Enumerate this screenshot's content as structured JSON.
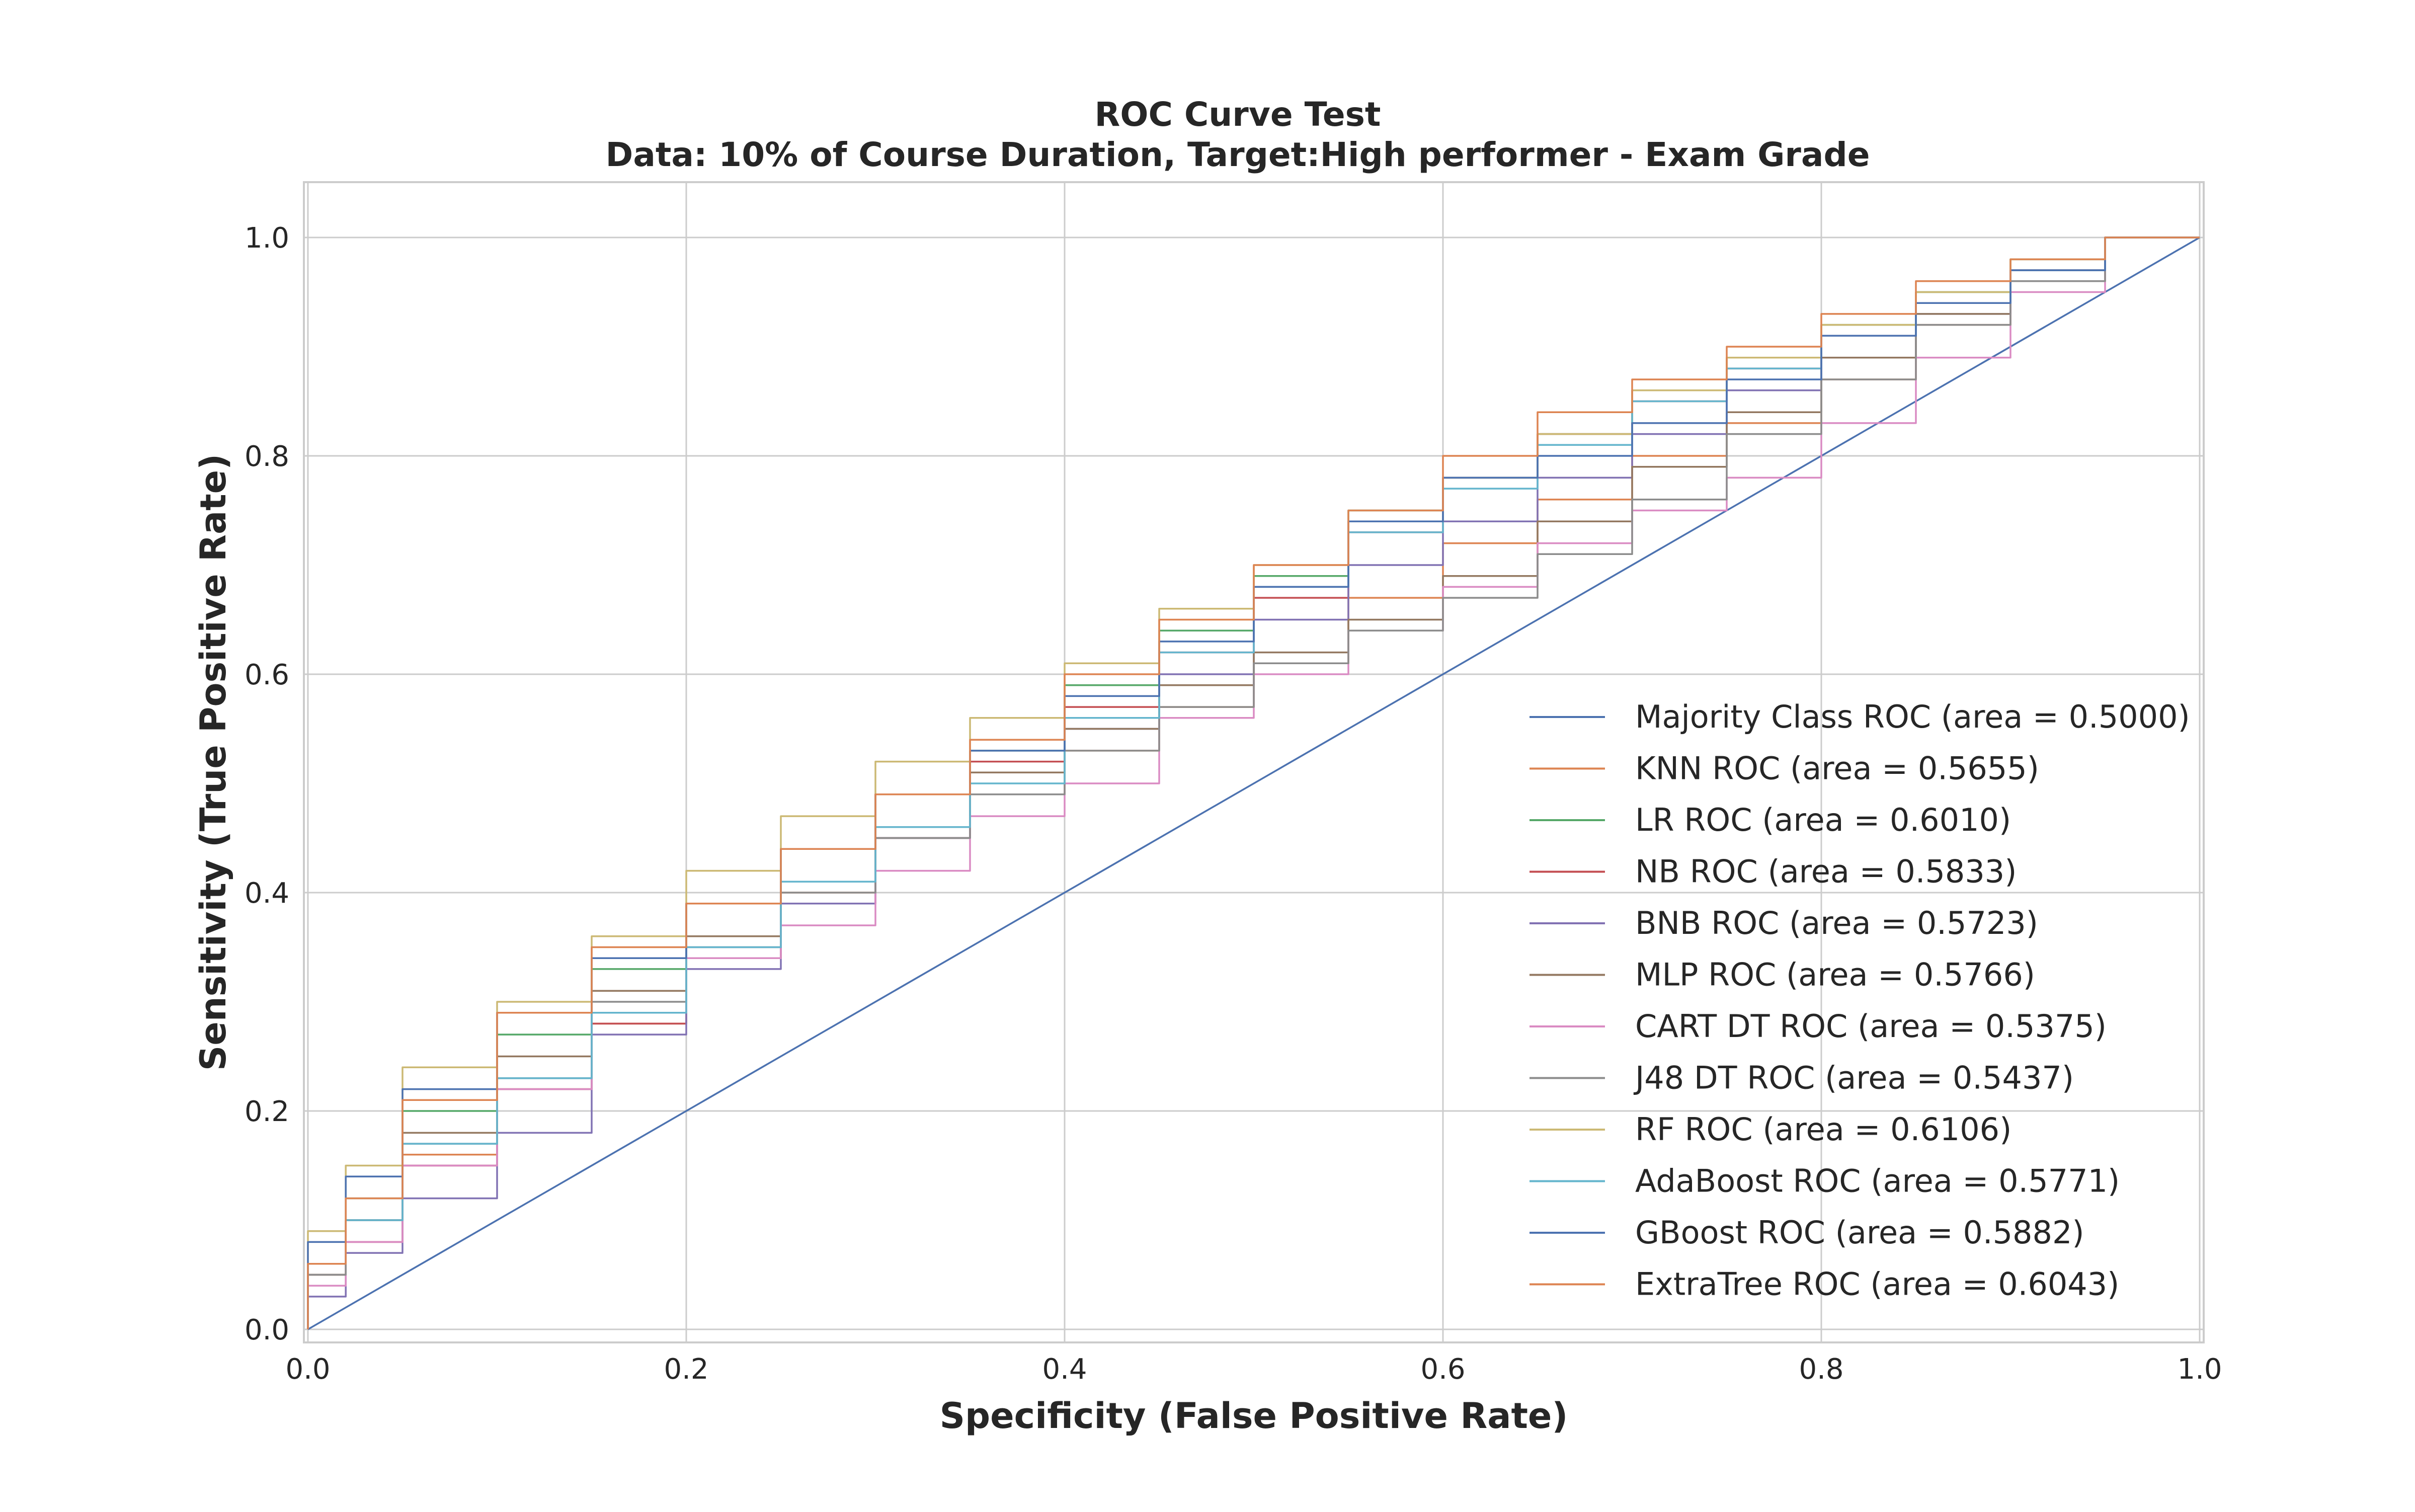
{
  "chart_data": {
    "type": "line",
    "title": "ROC Curve Test",
    "subtitle": "Data: 10% of Course Duration, Target:High performer - Exam Grade",
    "xlabel": "Specificity (False Positive Rate)",
    "ylabel": "Sensitivity (True Positive Rate)",
    "xlim": [
      0,
      1
    ],
    "ylim": [
      0,
      1
    ],
    "xticks": [
      "0.0",
      "0.2",
      "0.4",
      "0.6",
      "0.8",
      "1.0"
    ],
    "yticks": [
      "0.0",
      "0.2",
      "0.4",
      "0.6",
      "0.8",
      "1.0"
    ],
    "grid": true,
    "legend_position": "lower-right",
    "series": [
      {
        "name": "Majority Class ROC (area = 0.5000)",
        "color": "#4c72b0",
        "x": [
          0.0,
          1.0
        ],
        "y": [
          0.0,
          1.0
        ]
      },
      {
        "name": "KNN ROC (area = 0.5655)",
        "color": "#dd8452",
        "x": [
          0.0,
          0.02,
          0.05,
          0.1,
          0.15,
          0.2,
          0.25,
          0.3,
          0.35,
          0.4,
          0.45,
          0.5,
          0.55,
          0.6,
          0.65,
          0.7,
          0.75,
          0.8,
          0.85,
          0.9,
          0.95,
          1.0
        ],
        "y": [
          0.0,
          0.05,
          0.1,
          0.16,
          0.22,
          0.28,
          0.34,
          0.4,
          0.45,
          0.49,
          0.53,
          0.57,
          0.61,
          0.67,
          0.72,
          0.76,
          0.8,
          0.83,
          0.87,
          0.92,
          0.96,
          1.0
        ]
      },
      {
        "name": "LR ROC (area = 0.6010)",
        "color": "#55a868",
        "x": [
          0.0,
          0.02,
          0.05,
          0.1,
          0.15,
          0.2,
          0.25,
          0.3,
          0.35,
          0.4,
          0.45,
          0.5,
          0.55,
          0.6,
          0.65,
          0.7,
          0.75,
          0.8,
          0.85,
          0.9,
          0.95,
          1.0
        ],
        "y": [
          0.0,
          0.06,
          0.12,
          0.2,
          0.27,
          0.33,
          0.39,
          0.44,
          0.49,
          0.53,
          0.59,
          0.64,
          0.69,
          0.75,
          0.78,
          0.82,
          0.86,
          0.89,
          0.92,
          0.95,
          0.98,
          1.0
        ]
      },
      {
        "name": "NB ROC (area = 0.5833)",
        "color": "#c44e52",
        "x": [
          0.0,
          0.02,
          0.05,
          0.1,
          0.15,
          0.2,
          0.25,
          0.3,
          0.35,
          0.4,
          0.45,
          0.5,
          0.55,
          0.6,
          0.65,
          0.7,
          0.75,
          0.8,
          0.85,
          0.9,
          0.95,
          1.0
        ],
        "y": [
          0.0,
          0.04,
          0.08,
          0.15,
          0.22,
          0.28,
          0.34,
          0.39,
          0.45,
          0.52,
          0.57,
          0.62,
          0.67,
          0.73,
          0.78,
          0.82,
          0.85,
          0.88,
          0.91,
          0.94,
          0.97,
          1.0
        ]
      },
      {
        "name": "BNB ROC (area = 0.5723)",
        "color": "#8172b3",
        "x": [
          0.0,
          0.02,
          0.05,
          0.1,
          0.15,
          0.2,
          0.25,
          0.3,
          0.35,
          0.4,
          0.45,
          0.5,
          0.55,
          0.6,
          0.65,
          0.7,
          0.75,
          0.8,
          0.85,
          0.9,
          0.95,
          1.0
        ],
        "y": [
          0.0,
          0.03,
          0.07,
          0.12,
          0.18,
          0.27,
          0.33,
          0.39,
          0.45,
          0.51,
          0.55,
          0.6,
          0.65,
          0.7,
          0.74,
          0.78,
          0.82,
          0.86,
          0.89,
          0.93,
          0.97,
          1.0
        ]
      },
      {
        "name": "MLP ROC (area = 0.5766)",
        "color": "#937860",
        "x": [
          0.0,
          0.02,
          0.05,
          0.1,
          0.15,
          0.2,
          0.25,
          0.3,
          0.35,
          0.4,
          0.45,
          0.5,
          0.55,
          0.6,
          0.65,
          0.7,
          0.75,
          0.8,
          0.85,
          0.9,
          0.95,
          1.0
        ],
        "y": [
          0.0,
          0.05,
          0.1,
          0.18,
          0.25,
          0.31,
          0.36,
          0.41,
          0.46,
          0.51,
          0.55,
          0.59,
          0.62,
          0.65,
          0.69,
          0.74,
          0.79,
          0.84,
          0.89,
          0.93,
          0.97,
          1.0
        ]
      },
      {
        "name": "CART DT ROC (area = 0.5375)",
        "color": "#da8bc3",
        "x": [
          0.0,
          0.02,
          0.05,
          0.1,
          0.15,
          0.2,
          0.25,
          0.3,
          0.35,
          0.4,
          0.45,
          0.5,
          0.55,
          0.6,
          0.65,
          0.7,
          0.75,
          0.8,
          0.85,
          0.9,
          0.95,
          1.0
        ],
        "y": [
          0.0,
          0.04,
          0.08,
          0.15,
          0.22,
          0.29,
          0.34,
          0.37,
          0.42,
          0.47,
          0.5,
          0.56,
          0.6,
          0.64,
          0.68,
          0.72,
          0.75,
          0.78,
          0.83,
          0.89,
          0.95,
          1.0
        ]
      },
      {
        "name": "J48 DT ROC (area = 0.5437)",
        "color": "#8c8c8c",
        "x": [
          0.0,
          0.02,
          0.05,
          0.1,
          0.15,
          0.2,
          0.25,
          0.3,
          0.35,
          0.4,
          0.45,
          0.5,
          0.55,
          0.6,
          0.65,
          0.7,
          0.75,
          0.8,
          0.85,
          0.9,
          0.95,
          1.0
        ],
        "y": [
          0.0,
          0.05,
          0.1,
          0.17,
          0.23,
          0.3,
          0.35,
          0.4,
          0.45,
          0.49,
          0.53,
          0.57,
          0.61,
          0.64,
          0.67,
          0.71,
          0.76,
          0.82,
          0.87,
          0.92,
          0.96,
          1.0
        ]
      },
      {
        "name": "RF ROC (area = 0.6106)",
        "color": "#ccb974",
        "x": [
          0.0,
          0.02,
          0.05,
          0.1,
          0.15,
          0.2,
          0.25,
          0.3,
          0.35,
          0.4,
          0.45,
          0.5,
          0.55,
          0.6,
          0.65,
          0.7,
          0.75,
          0.8,
          0.85,
          0.9,
          0.95,
          1.0
        ],
        "y": [
          0.0,
          0.09,
          0.15,
          0.24,
          0.3,
          0.36,
          0.42,
          0.47,
          0.52,
          0.56,
          0.61,
          0.66,
          0.7,
          0.74,
          0.78,
          0.82,
          0.86,
          0.89,
          0.92,
          0.95,
          0.98,
          1.0
        ]
      },
      {
        "name": "AdaBoost ROC (area = 0.5771)",
        "color": "#64b5cd",
        "x": [
          0.0,
          0.02,
          0.05,
          0.1,
          0.15,
          0.2,
          0.25,
          0.3,
          0.35,
          0.4,
          0.45,
          0.5,
          0.55,
          0.6,
          0.65,
          0.7,
          0.75,
          0.8,
          0.85,
          0.9,
          0.95,
          1.0
        ],
        "y": [
          0.0,
          0.06,
          0.1,
          0.17,
          0.23,
          0.29,
          0.35,
          0.41,
          0.46,
          0.5,
          0.56,
          0.62,
          0.68,
          0.73,
          0.77,
          0.81,
          0.85,
          0.88,
          0.91,
          0.94,
          0.97,
          1.0
        ]
      },
      {
        "name": "GBoost ROC (area = 0.5882)",
        "color": "#4c72b0",
        "x": [
          0.0,
          0.02,
          0.05,
          0.1,
          0.15,
          0.2,
          0.25,
          0.3,
          0.35,
          0.4,
          0.45,
          0.5,
          0.55,
          0.6,
          0.65,
          0.7,
          0.75,
          0.8,
          0.85,
          0.9,
          0.95,
          1.0
        ],
        "y": [
          0.0,
          0.08,
          0.14,
          0.22,
          0.29,
          0.34,
          0.39,
          0.44,
          0.49,
          0.53,
          0.58,
          0.63,
          0.68,
          0.74,
          0.78,
          0.8,
          0.83,
          0.87,
          0.91,
          0.94,
          0.97,
          1.0
        ]
      },
      {
        "name": "ExtraTree ROC (area = 0.6043)",
        "color": "#dd8452",
        "x": [
          0.0,
          0.02,
          0.05,
          0.1,
          0.15,
          0.2,
          0.25,
          0.3,
          0.35,
          0.4,
          0.45,
          0.5,
          0.55,
          0.6,
          0.65,
          0.7,
          0.75,
          0.8,
          0.85,
          0.9,
          0.95,
          1.0
        ],
        "y": [
          0.0,
          0.06,
          0.12,
          0.21,
          0.29,
          0.35,
          0.39,
          0.44,
          0.49,
          0.54,
          0.6,
          0.65,
          0.7,
          0.75,
          0.8,
          0.84,
          0.87,
          0.9,
          0.93,
          0.96,
          0.98,
          1.0
        ]
      }
    ]
  }
}
